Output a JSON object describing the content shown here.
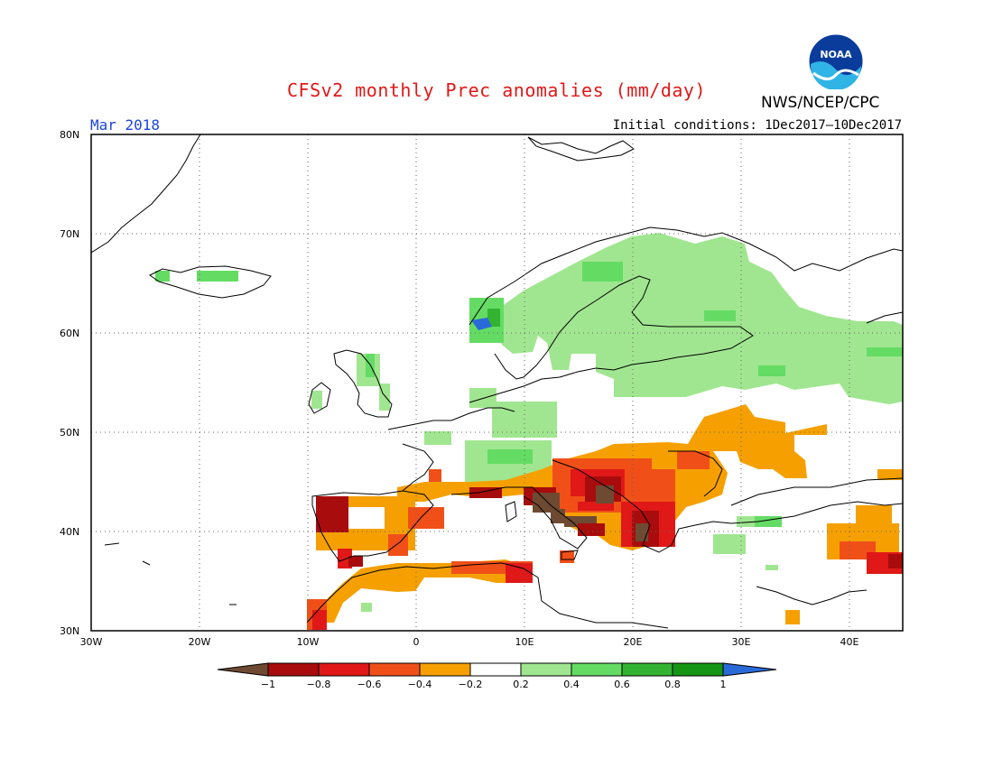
{
  "title": "CFSv2 monthly Prec anomalies (mm/day)",
  "organization": "NWS/NCEP/CPC",
  "logo_text": "NOAA",
  "period": "Mar 2018",
  "initial_conditions": "Initial conditions: 1Dec2017–10Dec2017",
  "map": {
    "region": "Europe",
    "lon_range": [
      -30,
      45
    ],
    "lat_range": [
      30,
      80
    ],
    "gridlines": "dotted",
    "lat_labels": [
      "80N",
      "70N",
      "60N",
      "50N",
      "40N",
      "30N"
    ],
    "lon_labels": [
      "30W",
      "20W",
      "10W",
      "0",
      "10E",
      "20E",
      "30E",
      "40E"
    ]
  },
  "colorbar": {
    "labels": [
      "−1",
      "−0.8",
      "−0.6",
      "−0.4",
      "−0.2",
      "0.2",
      "0.4",
      "0.6",
      "0.8",
      "1"
    ],
    "colors": [
      "#6e4a32",
      "#a80c0c",
      "#e01818",
      "#f05018",
      "#f5a000",
      "#ffffff",
      "#a0e690",
      "#64dc64",
      "#32b432",
      "#149614",
      "#2a6ad8"
    ]
  }
}
